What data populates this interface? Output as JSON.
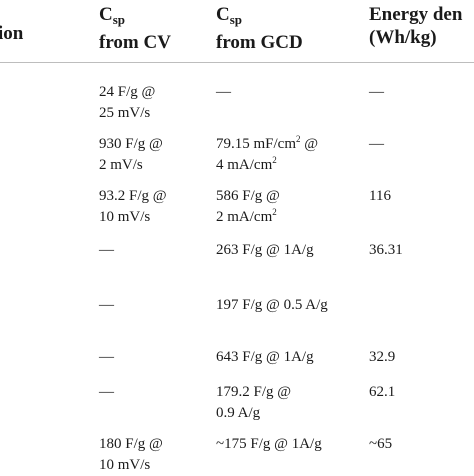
{
  "table": {
    "headers": [
      {
        "line1": "ion",
        "line2": ""
      },
      {
        "line1_base": "C",
        "line1_sub": "sp",
        "line2": "from CV"
      },
      {
        "line1_base": "C",
        "line1_sub": "sp",
        "line2": "from GCD"
      },
      {
        "line1": "Energy den",
        "line2": "(Wh/kg)"
      }
    ],
    "rows": [
      {
        "cv": [
          "24 F/g @",
          "25 mV/s"
        ],
        "gcd": [
          "—"
        ],
        "energy": "—"
      },
      {
        "cv": [
          "930 F/g @",
          "2 mV/s"
        ],
        "gcd": [
          "79.15 mF/cm² @",
          "4 mA/cm²"
        ],
        "energy": "—"
      },
      {
        "cv": [
          "93.2 F/g @",
          "10 mV/s"
        ],
        "gcd": [
          "586 F/g @",
          "2 mA/cm²"
        ],
        "energy": "116"
      },
      {
        "cv": [
          "—"
        ],
        "gcd": [
          "263 F/g @ 1A/g"
        ],
        "energy": "36.31"
      },
      {
        "cv": [
          "—"
        ],
        "gcd": [
          "197 F/g @ 0.5 A/g"
        ],
        "energy": ""
      },
      {
        "cv": [
          "—"
        ],
        "gcd": [
          "643 F/g @ 1A/g"
        ],
        "energy": "32.9"
      },
      {
        "cv": [
          "—"
        ],
        "gcd": [
          "179.2 F/g @",
          "0.9 A/g"
        ],
        "energy": "62.1"
      },
      {
        "cv": [
          "180 F/g @",
          "10 mV/s"
        ],
        "gcd": [
          "~175 F/g @ 1A/g"
        ],
        "energy": "~65"
      }
    ]
  }
}
